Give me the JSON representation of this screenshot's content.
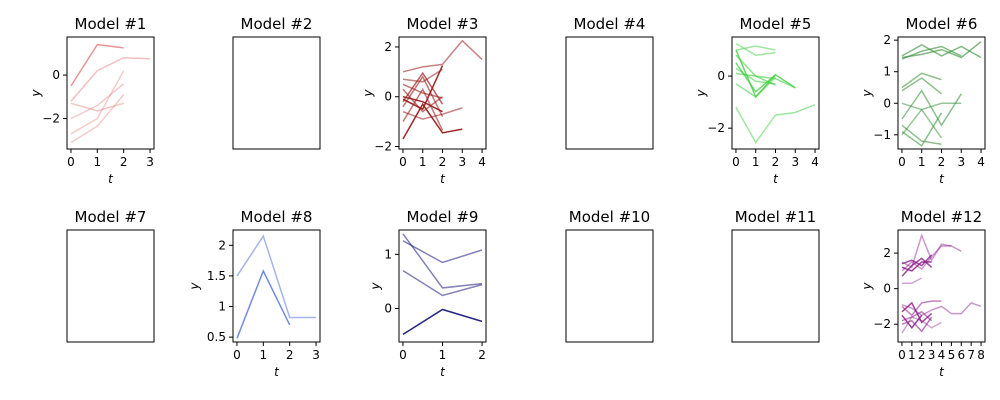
{
  "chart_data": [
    {
      "type": "line",
      "title": "Model #1",
      "xlabel": "t",
      "ylabel": "y",
      "xlim": [
        -0.15,
        3.15
      ],
      "ylim": [
        -3.4,
        1.75
      ],
      "xticks": [
        0,
        1,
        2,
        3
      ],
      "yticks": [
        -2,
        0
      ],
      "color": "#e88a8a",
      "series": [
        {
          "x": [
            0,
            1,
            2
          ],
          "y": [
            -0.5,
            1.4,
            1.25
          ],
          "opacity": 0.9
        },
        {
          "x": [
            0,
            1,
            2,
            3
          ],
          "y": [
            -1.2,
            0.2,
            0.8,
            0.75
          ],
          "opacity": 0.55
        },
        {
          "x": [
            0,
            1,
            2
          ],
          "y": [
            -1.3,
            -1.65,
            -1.3
          ],
          "opacity": 0.5
        },
        {
          "x": [
            0,
            1,
            2
          ],
          "y": [
            -2.0,
            -1.4,
            -0.4
          ],
          "opacity": 0.45
        },
        {
          "x": [
            0,
            1,
            2
          ],
          "y": [
            -2.7,
            -2.0,
            0.2
          ],
          "opacity": 0.45
        },
        {
          "x": [
            0,
            1,
            2
          ],
          "y": [
            -3.1,
            -2.35,
            -0.9
          ],
          "opacity": 0.45
        }
      ]
    },
    {
      "type": "line",
      "title": "Model #2",
      "empty": true,
      "series": []
    },
    {
      "type": "line",
      "title": "Model #3",
      "xlabel": "t",
      "ylabel": "y",
      "xlim": [
        -0.2,
        4.2
      ],
      "ylim": [
        -2.1,
        2.4
      ],
      "xticks": [
        0,
        1,
        2,
        3,
        4
      ],
      "yticks": [
        -2,
        0,
        2
      ],
      "color": "#9b1c1c",
      "series": [
        {
          "x": [
            0,
            1,
            2,
            3,
            4
          ],
          "y": [
            1.0,
            1.2,
            1.3,
            2.25,
            1.5
          ],
          "opacity": 0.55
        },
        {
          "x": [
            0,
            1,
            2
          ],
          "y": [
            0.7,
            0.6,
            1.1
          ],
          "opacity": 0.55
        },
        {
          "x": [
            0,
            1,
            2
          ],
          "y": [
            0.5,
            0.15,
            -0.05
          ],
          "opacity": 0.6
        },
        {
          "x": [
            0,
            1,
            2
          ],
          "y": [
            0.3,
            -0.6,
            0.0
          ],
          "opacity": 0.6
        },
        {
          "x": [
            0,
            1,
            2
          ],
          "y": [
            -0.2,
            0.95,
            -0.3
          ],
          "opacity": 0.7
        },
        {
          "x": [
            0,
            1,
            2
          ],
          "y": [
            -0.4,
            0.8,
            -0.8
          ],
          "opacity": 0.6
        },
        {
          "x": [
            0,
            1,
            2,
            3
          ],
          "y": [
            -0.6,
            -0.9,
            -0.7,
            -0.45
          ],
          "opacity": 0.55
        },
        {
          "x": [
            0,
            1,
            2
          ],
          "y": [
            -1.0,
            0.3,
            -1.35
          ],
          "opacity": 0.6
        },
        {
          "x": [
            0,
            1,
            2,
            3
          ],
          "y": [
            -1.7,
            -0.3,
            -1.45,
            -1.3
          ],
          "opacity": 0.95
        },
        {
          "x": [
            0,
            1,
            2
          ],
          "y": [
            -0.1,
            -0.5,
            1.25
          ],
          "opacity": 0.95
        },
        {
          "x": [
            0,
            1,
            2
          ],
          "y": [
            0.0,
            -0.2,
            -0.6
          ],
          "opacity": 0.95
        }
      ]
    },
    {
      "type": "line",
      "title": "Model #4",
      "empty": true,
      "series": []
    },
    {
      "type": "line",
      "title": "Model #5",
      "xlabel": "t",
      "ylabel": "y",
      "xlim": [
        -0.2,
        4.2
      ],
      "ylim": [
        -2.8,
        1.5
      ],
      "xticks": [
        0,
        1,
        2,
        3,
        4
      ],
      "yticks": [
        -2,
        0
      ],
      "color": "#3fcf3f",
      "series": [
        {
          "x": [
            0,
            1,
            2,
            3,
            4
          ],
          "y": [
            -1.2,
            -2.55,
            -1.5,
            -1.4,
            -1.1
          ],
          "opacity": 0.5
        },
        {
          "x": [
            0,
            1,
            2
          ],
          "y": [
            1.25,
            0.8,
            0.9
          ],
          "opacity": 0.5
        },
        {
          "x": [
            0,
            1,
            2
          ],
          "y": [
            1.0,
            1.15,
            1.0
          ],
          "opacity": 0.5
        },
        {
          "x": [
            0,
            1,
            2,
            3
          ],
          "y": [
            0.8,
            0.0,
            -0.1,
            -0.45
          ],
          "opacity": 0.6
        },
        {
          "x": [
            0,
            1,
            2
          ],
          "y": [
            0.5,
            -0.6,
            0.05
          ],
          "opacity": 0.75
        },
        {
          "x": [
            0,
            1,
            2
          ],
          "y": [
            0.3,
            -0.2,
            -0.3
          ],
          "opacity": 0.55
        },
        {
          "x": [
            0,
            1,
            2
          ],
          "y": [
            -0.3,
            -0.8,
            -0.05
          ],
          "opacity": 0.55
        },
        {
          "x": [
            0,
            1,
            2
          ],
          "y": [
            0.1,
            0.0,
            -0.35
          ],
          "opacity": 0.6
        },
        {
          "x": [
            0,
            1,
            2,
            3
          ],
          "y": [
            1.0,
            -0.8,
            0.05,
            -0.45
          ],
          "opacity": 0.8
        }
      ]
    },
    {
      "type": "line",
      "title": "Model #6",
      "xlabel": "t",
      "ylabel": "y",
      "xlim": [
        -0.2,
        4.2
      ],
      "ylim": [
        -1.45,
        2.1
      ],
      "xticks": [
        0,
        1,
        2,
        3,
        4
      ],
      "yticks": [
        -1,
        0,
        1,
        2
      ],
      "color": "#2e8b2e",
      "series": [
        {
          "x": [
            0,
            1,
            2,
            3,
            4
          ],
          "y": [
            1.5,
            1.85,
            1.5,
            1.8,
            1.45
          ],
          "opacity": 0.6
        },
        {
          "x": [
            0,
            1,
            2,
            3
          ],
          "y": [
            1.4,
            1.65,
            1.8,
            1.5
          ],
          "opacity": 0.6
        },
        {
          "x": [
            0,
            1,
            2,
            3,
            4
          ],
          "y": [
            1.45,
            1.55,
            1.7,
            1.45,
            1.95
          ],
          "opacity": 0.6
        },
        {
          "x": [
            0,
            1,
            2
          ],
          "y": [
            0.5,
            0.95,
            0.75
          ],
          "opacity": 0.55
        },
        {
          "x": [
            0,
            1,
            2
          ],
          "y": [
            0.4,
            0.8,
            0.3
          ],
          "opacity": 0.55
        },
        {
          "x": [
            0,
            1,
            2,
            3
          ],
          "y": [
            0.0,
            -0.2,
            0.0,
            0.0
          ],
          "opacity": 0.5
        },
        {
          "x": [
            0,
            1,
            2,
            3
          ],
          "y": [
            -0.5,
            0.4,
            -0.7,
            0.3
          ],
          "opacity": 0.55
        },
        {
          "x": [
            0,
            1,
            2
          ],
          "y": [
            -0.7,
            -1.2,
            -1.3
          ],
          "opacity": 0.55
        },
        {
          "x": [
            0,
            1,
            2
          ],
          "y": [
            -0.9,
            -1.35,
            -0.3
          ],
          "opacity": 0.55
        },
        {
          "x": [
            0,
            1,
            2
          ],
          "y": [
            -1.0,
            -0.2,
            -1.1
          ],
          "opacity": 0.5
        }
      ]
    },
    {
      "type": "line",
      "title": "Model #7",
      "empty": true,
      "series": []
    },
    {
      "type": "line",
      "title": "Model #8",
      "xlabel": "t",
      "ylabel": "y",
      "xlim": [
        -0.15,
        3.15
      ],
      "ylim": [
        0.42,
        2.25
      ],
      "xticks": [
        0,
        1,
        2,
        3
      ],
      "yticks": [
        0.5,
        1.0,
        1.5,
        2.0
      ],
      "color": "#5b78d9",
      "series": [
        {
          "x": [
            0,
            1,
            2,
            3
          ],
          "y": [
            1.5,
            2.15,
            0.82,
            0.82
          ],
          "opacity": 0.55
        },
        {
          "x": [
            0,
            1,
            2
          ],
          "y": [
            0.48,
            1.58,
            0.7
          ],
          "opacity": 0.85
        }
      ]
    },
    {
      "type": "line",
      "title": "Model #9",
      "xlabel": "t",
      "ylabel": "y",
      "xlim": [
        -0.1,
        2.1
      ],
      "ylim": [
        -0.62,
        1.45
      ],
      "xticks": [
        0,
        1,
        2
      ],
      "yticks": [
        0,
        1
      ],
      "color": "#1a1a7a",
      "series": [
        {
          "x": [
            0,
            1,
            2
          ],
          "y": [
            1.25,
            0.85,
            1.08
          ],
          "opacity": 0.55
        },
        {
          "x": [
            0,
            1,
            2
          ],
          "y": [
            1.38,
            0.38,
            0.46
          ],
          "opacity": 0.55
        },
        {
          "x": [
            0,
            1,
            2
          ],
          "y": [
            0.7,
            0.24,
            0.44
          ],
          "opacity": 0.55
        },
        {
          "x": [
            0,
            1,
            2
          ],
          "y": [
            -0.48,
            -0.02,
            -0.24
          ],
          "opacity": 0.95
        }
      ]
    },
    {
      "type": "line",
      "title": "Model #10",
      "empty": true,
      "series": []
    },
    {
      "type": "line",
      "title": "Model #11",
      "empty": true,
      "series": []
    },
    {
      "type": "line",
      "title": "Model #12",
      "xlabel": "t",
      "ylabel": "y",
      "xlim": [
        -0.4,
        8.4
      ],
      "ylim": [
        -3.0,
        3.3
      ],
      "xticks": [
        0,
        1,
        2,
        3,
        4,
        5,
        6,
        7,
        8
      ],
      "yticks": [
        -2,
        0,
        2
      ],
      "color": "#8b1a8b",
      "series": [
        {
          "x": [
            0,
            1,
            2,
            3,
            4,
            5
          ],
          "y": [
            1.5,
            1.2,
            3.0,
            1.6,
            2.5,
            2.4
          ],
          "opacity": 0.45
        },
        {
          "x": [
            0,
            1,
            2,
            3,
            4,
            5,
            6
          ],
          "y": [
            1.0,
            1.5,
            1.1,
            1.8,
            2.4,
            2.4,
            2.1
          ],
          "opacity": 0.45
        },
        {
          "x": [
            0,
            1,
            2,
            3
          ],
          "y": [
            1.4,
            1.6,
            1.3,
            1.9
          ],
          "opacity": 0.8
        },
        {
          "x": [
            0,
            1,
            2,
            3
          ],
          "y": [
            0.7,
            1.3,
            1.7,
            1.2
          ],
          "opacity": 0.8
        },
        {
          "x": [
            0,
            1,
            2,
            3
          ],
          "y": [
            1.2,
            1.0,
            1.5,
            1.5
          ],
          "opacity": 0.85
        },
        {
          "x": [
            0,
            1,
            2
          ],
          "y": [
            0.3,
            0.3,
            0.6
          ],
          "opacity": 0.4
        },
        {
          "x": [
            0,
            1,
            2,
            3,
            4,
            5,
            6,
            7,
            8
          ],
          "y": [
            -0.9,
            -1.1,
            -1.5,
            -1.2,
            -1.0,
            -1.4,
            -1.4,
            -0.8,
            -1.0
          ],
          "opacity": 0.45
        },
        {
          "x": [
            0,
            1,
            2,
            3,
            4
          ],
          "y": [
            -2.5,
            -1.6,
            -1.8,
            -2.2,
            -1.9
          ],
          "opacity": 0.4
        },
        {
          "x": [
            0,
            1,
            2,
            3,
            4
          ],
          "y": [
            -1.0,
            -1.5,
            -0.8,
            -0.7,
            -0.7
          ],
          "opacity": 0.55
        },
        {
          "x": [
            0,
            1,
            2,
            3
          ],
          "y": [
            -1.8,
            -1.6,
            -1.3,
            -1.8
          ],
          "opacity": 0.55
        },
        {
          "x": [
            0,
            1,
            2,
            3
          ],
          "y": [
            -1.3,
            -0.8,
            -1.9,
            -1.4
          ],
          "opacity": 0.8
        },
        {
          "x": [
            0,
            1,
            2
          ],
          "y": [
            -1.5,
            -2.2,
            -1.5
          ],
          "opacity": 0.85
        },
        {
          "x": [
            0,
            1,
            2,
            3
          ],
          "y": [
            -2.0,
            -1.8,
            -2.4,
            -1.6
          ],
          "opacity": 0.6
        }
      ]
    }
  ]
}
